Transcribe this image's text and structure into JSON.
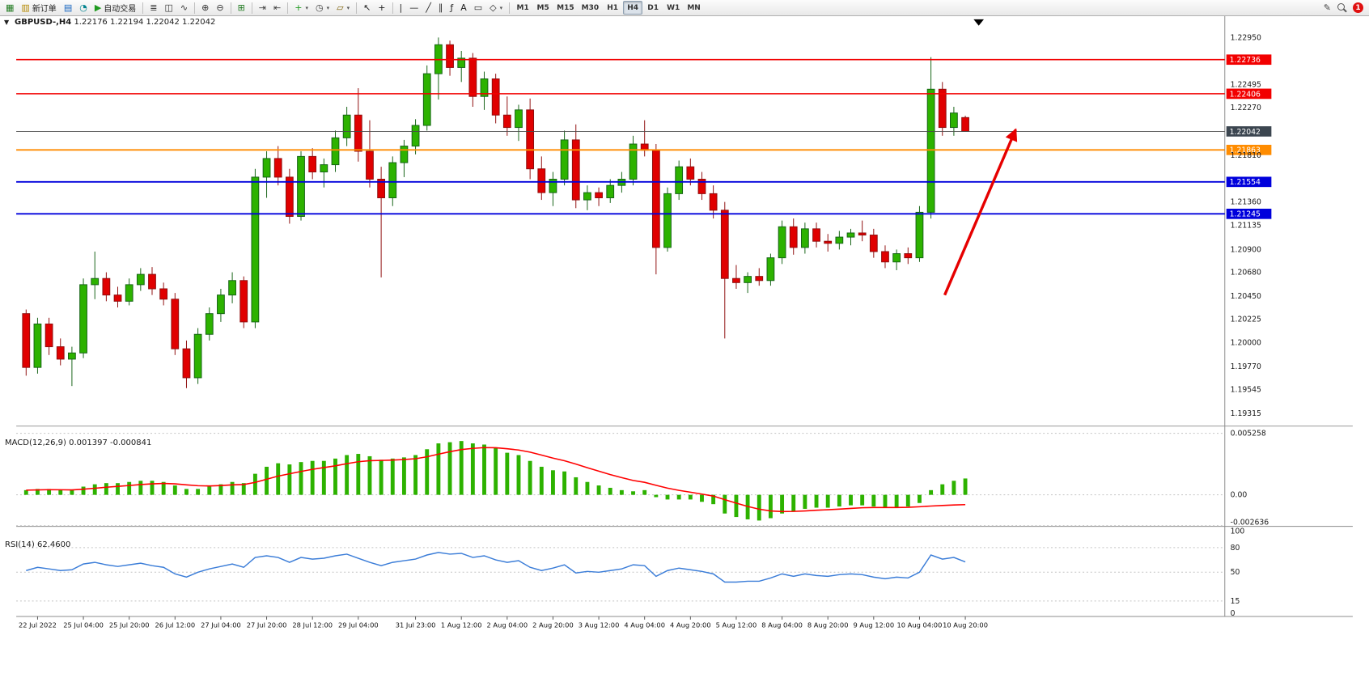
{
  "toolbar": {
    "groups": [
      {
        "items": [
          {
            "name": "new-chart-button",
            "glyph": "▦",
            "color": "#1f7a1f"
          },
          {
            "name": "new-order-button",
            "glyph": "▥",
            "color": "#b58900",
            "label": "新订单"
          },
          {
            "name": "chart-profiles-button",
            "glyph": "▤",
            "color": "#1565c0"
          },
          {
            "name": "data-window-button",
            "glyph": "◔",
            "color": "#00838f"
          },
          {
            "name": "auto-trading-button",
            "glyph": "▶",
            "color": "#1f9a1f",
            "label": "自动交易"
          }
        ]
      },
      {
        "items": [
          {
            "name": "bar-chart-button",
            "glyph": "≣",
            "color": "#333333"
          },
          {
            "name": "candlestick-chart-button",
            "glyph": "◫",
            "color": "#333333"
          },
          {
            "name": "line-chart-button",
            "glyph": "∿",
            "color": "#333333"
          }
        ]
      },
      {
        "items": [
          {
            "name": "zoom-in-button",
            "glyph": "⊕",
            "color": "#333333"
          },
          {
            "name": "zoom-out-button",
            "glyph": "⊖",
            "color": "#333333"
          }
        ]
      },
      {
        "items": [
          {
            "name": "tile-windows-button",
            "glyph": "⊞",
            "color": "#1f7a1f"
          }
        ]
      },
      {
        "items": [
          {
            "name": "auto-scroll-button",
            "glyph": "⇥",
            "color": "#444444"
          },
          {
            "name": "chart-shift-button",
            "glyph": "⇤",
            "color": "#444444"
          }
        ]
      },
      {
        "items": [
          {
            "name": "indicators-button",
            "glyph": "+",
            "color": "#1f9a1f",
            "dropdown": true
          },
          {
            "name": "periods-button",
            "glyph": "◷",
            "color": "#444444",
            "dropdown": true
          },
          {
            "name": "templates-button",
            "glyph": "▱",
            "color": "#7a5c00",
            "dropdown": true
          }
        ]
      },
      {
        "items": [
          {
            "name": "cursor-button",
            "glyph": "↖",
            "color": "#222222"
          },
          {
            "name": "crosshair-button",
            "glyph": "+",
            "color": "#222222"
          }
        ]
      },
      {
        "items": [
          {
            "name": "vertical-line-button",
            "glyph": "|",
            "color": "#222222"
          },
          {
            "name": "horizontal-line-button",
            "glyph": "—",
            "color": "#222222"
          },
          {
            "name": "trendline-button",
            "glyph": "╱",
            "color": "#222222"
          },
          {
            "name": "channel-button",
            "glyph": "∥",
            "color": "#222222"
          },
          {
            "name": "fibonacci-button",
            "glyph": "ƒ",
            "color": "#222222"
          },
          {
            "name": "text-button",
            "glyph": "A",
            "color": "#222222"
          },
          {
            "name": "label-button",
            "glyph": "▭",
            "color": "#222222"
          },
          {
            "name": "shapes-button",
            "glyph": "◇",
            "color": "#222222",
            "dropdown": true
          }
        ]
      }
    ],
    "timeframes": [
      "M1",
      "M5",
      "M15",
      "M30",
      "H1",
      "H4",
      "D1",
      "W1",
      "MN"
    ],
    "active_timeframe": "H4",
    "right_items": [
      {
        "name": "edit-button",
        "glyph": "✎",
        "color": "#444444"
      },
      {
        "name": "search-icon",
        "type": "magnifier"
      },
      {
        "name": "notification-badge",
        "label": "1"
      }
    ]
  },
  "chart": {
    "one_click_glyph": "▼",
    "symbol_title": "GBPUSD-,H4",
    "ohlc_text": "1.22176 1.22194 1.22042 1.22042",
    "macd_title": "MACD(12,26,9)",
    "macd_values": "0.001397 -0.000841",
    "rsi_title": "RSI(14)",
    "rsi_value": "62.4600",
    "price_axis_ticks": [
      "1.22950",
      "1.22495",
      "1.22270",
      "1.21810",
      "1.21360",
      "1.21135",
      "1.20900",
      "1.20680",
      "1.20450",
      "1.20225",
      "1.20000",
      "1.19770",
      "1.19545",
      "1.19315"
    ],
    "price_lines": [
      {
        "label": "1.22736",
        "value": 1.22736,
        "color": "#f20000",
        "width": 1.6
      },
      {
        "label": "1.22406",
        "value": 1.22406,
        "color": "#f20000",
        "width": 1.6
      },
      {
        "label": "1.21863",
        "value": 1.21863,
        "color": "#ff8c00",
        "width": 2
      },
      {
        "label": "1.21554",
        "value": 1.21554,
        "color": "#0000dc",
        "width": 2
      },
      {
        "label": "1.21245",
        "value": 1.21245,
        "color": "#0000dc",
        "width": 2
      }
    ],
    "current_price": {
      "label": "1.22042",
      "value": 1.22042,
      "color": "#3c4650"
    },
    "macd_axis": [
      {
        "label": "0.005258",
        "value": 0.005258
      },
      {
        "label": "0.00",
        "value": 0
      },
      {
        "label": "-0.002636",
        "value": -0.002636
      }
    ],
    "rsi_axis": [
      {
        "label": "100",
        "value": 100
      },
      {
        "label": "80",
        "value": 80
      },
      {
        "label": "50",
        "value": 50
      },
      {
        "label": "15",
        "value": 15
      },
      {
        "label": "0",
        "value": 0
      }
    ],
    "rsi_levels": [
      80,
      50,
      15
    ],
    "time_labels": [
      {
        "i": 1,
        "label": "22 Jul 2022"
      },
      {
        "i": 5,
        "label": "25 Jul 04:00"
      },
      {
        "i": 9,
        "label": "25 Jul 20:00"
      },
      {
        "i": 13,
        "label": "26 Jul 12:00"
      },
      {
        "i": 17,
        "label": "27 Jul 04:00"
      },
      {
        "i": 21,
        "label": "27 Jul 20:00"
      },
      {
        "i": 25,
        "label": "28 Jul 12:00"
      },
      {
        "i": 29,
        "label": "29 Jul 04:00"
      },
      {
        "i": 34,
        "label": "31 Jul 23:00"
      },
      {
        "i": 38,
        "label": "1 Aug 12:00"
      },
      {
        "i": 42,
        "label": "2 Aug 04:00"
      },
      {
        "i": 46,
        "label": "2 Aug 20:00"
      },
      {
        "i": 50,
        "label": "3 Aug 12:00"
      },
      {
        "i": 54,
        "label": "4 Aug 04:00"
      },
      {
        "i": 58,
        "label": "4 Aug 20:00"
      },
      {
        "i": 62,
        "label": "5 Aug 12:00"
      },
      {
        "i": 66,
        "label": "8 Aug 04:00"
      },
      {
        "i": 70,
        "label": "8 Aug 20:00"
      },
      {
        "i": 74,
        "label": "9 Aug 12:00"
      },
      {
        "i": 78,
        "label": "10 Aug 04:00"
      },
      {
        "i": 82,
        "label": "10 Aug 20:00"
      }
    ]
  },
  "chart_data": {
    "type": "candlestick",
    "symbol": "GBPUSD",
    "timeframe": "H4",
    "title": "GBPUSD-,H4",
    "price_range_visible": [
      1.19315,
      1.2295
    ],
    "up_color": "#2db200",
    "down_color": "#e00000",
    "candles": [
      [
        1.2028,
        1.2032,
        1.1968,
        1.1976
      ],
      [
        1.1976,
        1.2024,
        1.197,
        1.2018
      ],
      [
        1.2018,
        1.2024,
        1.1988,
        1.1996
      ],
      [
        1.1996,
        1.2004,
        1.1978,
        1.1984
      ],
      [
        1.1984,
        1.1996,
        1.1958,
        1.199
      ],
      [
        1.199,
        1.2062,
        1.1985,
        1.2056
      ],
      [
        1.2056,
        1.2088,
        1.2042,
        1.2062
      ],
      [
        1.2062,
        1.2068,
        1.204,
        1.2046
      ],
      [
        1.2046,
        1.2054,
        1.2034,
        1.204
      ],
      [
        1.204,
        1.2062,
        1.2036,
        1.2056
      ],
      [
        1.2056,
        1.2072,
        1.205,
        1.2066
      ],
      [
        1.2066,
        1.2073,
        1.2046,
        1.2052
      ],
      [
        1.2052,
        1.2058,
        1.2036,
        1.2042
      ],
      [
        1.2042,
        1.2048,
        1.1988,
        1.1994
      ],
      [
        1.1994,
        1.2002,
        1.1956,
        1.1966
      ],
      [
        1.1966,
        1.2014,
        1.196,
        1.2008
      ],
      [
        1.2008,
        1.2034,
        1.2002,
        1.2028
      ],
      [
        1.2028,
        1.2052,
        1.202,
        1.2046
      ],
      [
        1.2046,
        1.2068,
        1.2038,
        1.206
      ],
      [
        1.206,
        1.2064,
        1.2014,
        1.202
      ],
      [
        1.202,
        1.2168,
        1.2014,
        1.216
      ],
      [
        1.216,
        1.2185,
        1.214,
        1.2178
      ],
      [
        1.2178,
        1.219,
        1.2152,
        1.216
      ],
      [
        1.216,
        1.2168,
        1.2115,
        1.2122
      ],
      [
        1.2122,
        1.2185,
        1.2118,
        1.218
      ],
      [
        1.218,
        1.2188,
        1.2158,
        1.2165
      ],
      [
        1.2165,
        1.2178,
        1.215,
        1.2172
      ],
      [
        1.2172,
        1.2205,
        1.2165,
        1.2198
      ],
      [
        1.2198,
        1.2228,
        1.219,
        1.222
      ],
      [
        1.222,
        1.2246,
        1.2175,
        1.2185
      ],
      [
        1.2185,
        1.2215,
        1.215,
        1.2158
      ],
      [
        1.2158,
        1.217,
        1.2063,
        1.214
      ],
      [
        1.214,
        1.218,
        1.2132,
        1.2174
      ],
      [
        1.2174,
        1.2196,
        1.216,
        1.219
      ],
      [
        1.219,
        1.2216,
        1.2182,
        1.221
      ],
      [
        1.221,
        1.2268,
        1.2205,
        1.226
      ],
      [
        1.226,
        1.2295,
        1.2235,
        1.2288
      ],
      [
        1.2288,
        1.2292,
        1.2258,
        1.2266
      ],
      [
        1.2266,
        1.2282,
        1.2252,
        1.2275
      ],
      [
        1.2275,
        1.228,
        1.2228,
        1.2238
      ],
      [
        1.2238,
        1.2262,
        1.2225,
        1.2255
      ],
      [
        1.2255,
        1.226,
        1.2212,
        1.222
      ],
      [
        1.222,
        1.2238,
        1.22,
        1.2208
      ],
      [
        1.2208,
        1.223,
        1.2195,
        1.2225
      ],
      [
        1.2225,
        1.2236,
        1.2158,
        1.2168
      ],
      [
        1.2168,
        1.218,
        1.2138,
        1.2145
      ],
      [
        1.2145,
        1.2165,
        1.2132,
        1.2158
      ],
      [
        1.2158,
        1.2205,
        1.2152,
        1.2196
      ],
      [
        1.2196,
        1.2211,
        1.213,
        1.2138
      ],
      [
        1.2138,
        1.2152,
        1.2128,
        1.2145
      ],
      [
        1.2145,
        1.215,
        1.2132,
        1.214
      ],
      [
        1.214,
        1.2158,
        1.2135,
        1.2152
      ],
      [
        1.2152,
        1.2165,
        1.2145,
        1.2158
      ],
      [
        1.2158,
        1.22,
        1.2152,
        1.2192
      ],
      [
        1.2192,
        1.2215,
        1.218,
        1.2186
      ],
      [
        1.2186,
        1.2192,
        1.2066,
        1.2092
      ],
      [
        1.2092,
        1.215,
        1.2088,
        1.2144
      ],
      [
        1.2144,
        1.2176,
        1.2138,
        1.217
      ],
      [
        1.217,
        1.2178,
        1.2152,
        1.2158
      ],
      [
        1.2158,
        1.2165,
        1.2138,
        1.2144
      ],
      [
        1.2144,
        1.2152,
        1.212,
        1.2128
      ],
      [
        1.2128,
        1.2136,
        1.2004,
        1.2062
      ],
      [
        1.2062,
        1.2075,
        1.2052,
        1.2058
      ],
      [
        1.2058,
        1.2068,
        1.2048,
        1.2064
      ],
      [
        1.2064,
        1.2072,
        1.2055,
        1.206
      ],
      [
        1.206,
        1.2086,
        1.2055,
        1.2082
      ],
      [
        1.2082,
        1.2118,
        1.2076,
        1.2112
      ],
      [
        1.2112,
        1.212,
        1.2085,
        1.2092
      ],
      [
        1.2092,
        1.2116,
        1.2086,
        1.211
      ],
      [
        1.211,
        1.2116,
        1.2092,
        1.2098
      ],
      [
        1.2098,
        1.2105,
        1.2088,
        1.2096
      ],
      [
        1.2096,
        1.2108,
        1.209,
        1.2102
      ],
      [
        1.2102,
        1.211,
        1.2094,
        1.2106
      ],
      [
        1.2106,
        1.2118,
        1.2098,
        1.2104
      ],
      [
        1.2104,
        1.211,
        1.2082,
        1.2088
      ],
      [
        1.2088,
        1.2094,
        1.2072,
        1.2078
      ],
      [
        1.2078,
        1.209,
        1.207,
        1.2086
      ],
      [
        1.2086,
        1.2092,
        1.2076,
        1.2082
      ],
      [
        1.2082,
        1.2132,
        1.2078,
        1.2126
      ],
      [
        1.2126,
        1.2276,
        1.212,
        1.2245
      ],
      [
        1.2245,
        1.2252,
        1.22,
        1.2208
      ],
      [
        1.2208,
        1.2228,
        1.22,
        1.2222
      ],
      [
        1.22176,
        1.22194,
        1.22042,
        1.22042
      ]
    ],
    "macd": {
      "params": "12,26,9",
      "current_value": 0.001397,
      "current_signal": -0.000841,
      "histogram": [
        0.0004,
        0.0005,
        0.0005,
        0.0004,
        0.0004,
        0.0007,
        0.0009,
        0.001,
        0.001,
        0.0011,
        0.0012,
        0.0012,
        0.0011,
        0.0008,
        0.0005,
        0.0005,
        0.0007,
        0.0009,
        0.0011,
        0.001,
        0.0018,
        0.0024,
        0.0027,
        0.0026,
        0.0028,
        0.0029,
        0.0029,
        0.0031,
        0.0034,
        0.0035,
        0.0033,
        0.003,
        0.0031,
        0.0032,
        0.0034,
        0.0039,
        0.0044,
        0.0045,
        0.0046,
        0.0044,
        0.0043,
        0.004,
        0.0036,
        0.0034,
        0.0029,
        0.0024,
        0.0021,
        0.002,
        0.0015,
        0.0011,
        0.0008,
        0.0006,
        0.0004,
        0.0003,
        0.0004,
        -0.0002,
        -0.0004,
        -0.0004,
        -0.0004,
        -0.0006,
        -0.0008,
        -0.0016,
        -0.0019,
        -0.0021,
        -0.0022,
        -0.002,
        -0.0016,
        -0.0014,
        -0.0012,
        -0.0011,
        -0.0011,
        -0.001,
        -0.0009,
        -0.0009,
        -0.001,
        -0.0011,
        -0.0011,
        -0.001,
        -0.0007,
        0.0004,
        0.0009,
        0.0012,
        0.001397
      ],
      "signal": [
        0.0004,
        0.00042,
        0.00044,
        0.00043,
        0.00042,
        0.00048,
        0.00056,
        0.00065,
        0.00072,
        0.0008,
        0.00088,
        0.00094,
        0.00097,
        0.00094,
        0.00085,
        0.00078,
        0.00076,
        0.00079,
        0.00085,
        0.00088,
        0.00106,
        0.00133,
        0.0016,
        0.0018,
        0.002,
        0.00218,
        0.00233,
        0.00248,
        0.00266,
        0.00283,
        0.00292,
        0.00294,
        0.00297,
        0.00302,
        0.00309,
        0.00325,
        0.00348,
        0.00369,
        0.00387,
        0.00397,
        0.00404,
        0.00403,
        0.00394,
        0.00383,
        0.00365,
        0.0034,
        0.00314,
        0.00291,
        0.00263,
        0.00232,
        0.00202,
        0.00173,
        0.00147,
        0.00123,
        0.00107,
        0.00081,
        0.00057,
        0.00038,
        0.00022,
        6e-05,
        -0.00011,
        -0.00041,
        -0.00071,
        -0.00099,
        -0.00123,
        -0.00138,
        -0.00143,
        -0.00142,
        -0.00138,
        -0.00132,
        -0.00128,
        -0.00122,
        -0.00116,
        -0.00111,
        -0.00109,
        -0.00109,
        -0.00109,
        -0.00107,
        -0.00102,
        -0.00096,
        -0.00091,
        -0.00087,
        -0.000841
      ]
    },
    "rsi": {
      "period": 14,
      "current_value": 62.46,
      "values": [
        52,
        56,
        54,
        52,
        53,
        60,
        62,
        59,
        57,
        59,
        61,
        58,
        56,
        48,
        44,
        50,
        54,
        57,
        60,
        56,
        68,
        70,
        68,
        62,
        68,
        66,
        67,
        70,
        72,
        67,
        62,
        58,
        62,
        64,
        66,
        71,
        74,
        72,
        73,
        68,
        70,
        65,
        62,
        64,
        56,
        52,
        55,
        59,
        49,
        51,
        50,
        52,
        54,
        59,
        58,
        45,
        52,
        55,
        53,
        51,
        48,
        38,
        38,
        39,
        39,
        43,
        48,
        45,
        48,
        46,
        45,
        47,
        48,
        47,
        44,
        42,
        44,
        43,
        50,
        71,
        66,
        68,
        62.46
      ]
    },
    "arrow": {
      "from_index": 80.2,
      "from_price": 1.2046,
      "to_index": 86.4,
      "to_price": 1.2206,
      "color": "#e60000"
    }
  }
}
